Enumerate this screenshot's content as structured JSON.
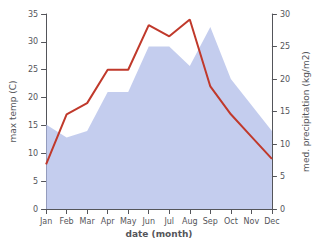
{
  "chart_data": {
    "type": "line",
    "categories": [
      "Jan",
      "Feb",
      "Mar",
      "Apr",
      "May",
      "Jun",
      "Jul",
      "Aug",
      "Sep",
      "Oct",
      "Nov",
      "Dec"
    ],
    "xlabel": "date (month)",
    "ylabel": "max temp (C)",
    "y2label": "med. precipitation (kg/m2)",
    "series": [
      {
        "type": "area",
        "axis": "y2",
        "color": "#b0bce8",
        "values": [
          13,
          11,
          12,
          18,
          18,
          25,
          25,
          22,
          28,
          20,
          16,
          12
        ]
      },
      {
        "type": "line",
        "color": "#c0392b",
        "values": [
          8,
          17,
          19,
          25,
          25,
          33,
          31,
          34,
          22,
          17,
          13,
          9
        ]
      }
    ],
    "ylim": [
      0,
      35
    ],
    "yticks": [
      0,
      5,
      10,
      15,
      20,
      25,
      30,
      35
    ],
    "y2lim": [
      0,
      30
    ],
    "y2ticks": [
      0,
      5,
      10,
      15,
      20,
      25,
      30
    ],
    "grid": false
  }
}
